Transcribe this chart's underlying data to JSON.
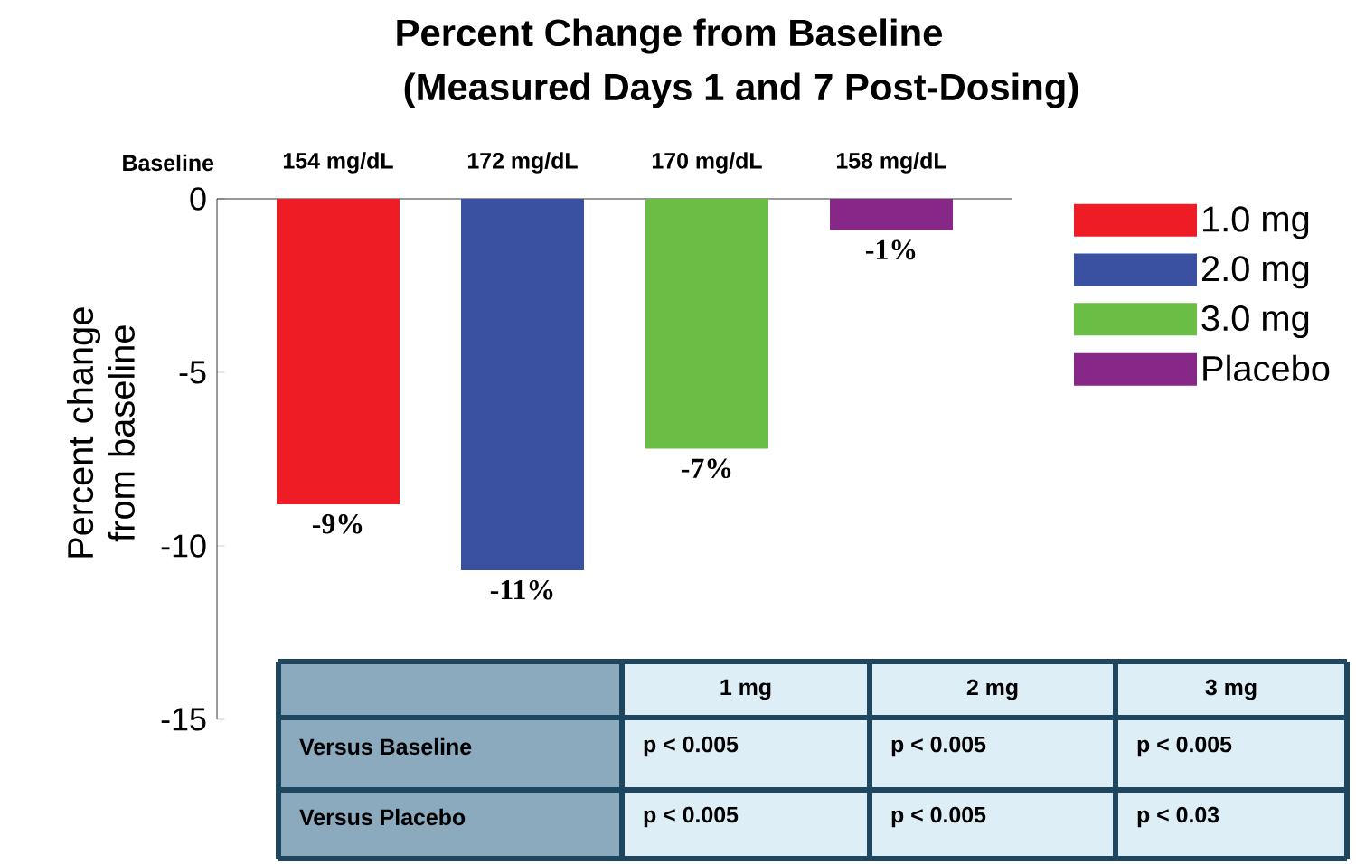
{
  "chart_data": {
    "type": "bar",
    "title": "Percent Change from Baseline",
    "subtitle": "(Measured Days 1 and 7 Post-Dosing)",
    "ylabel": "Percent change from baseline",
    "categories": [
      null
    ],
    "series": [
      {
        "name": "1.0 mg",
        "color": "#ee1c24",
        "values": [
          -8.8
        ],
        "value_labels": [
          "-9%"
        ]
      },
      {
        "name": "2.0 mg",
        "color": "#3a50a0",
        "values": [
          -10.7
        ],
        "value_labels": [
          "-11%"
        ]
      },
      {
        "name": "3.0 mg",
        "color": "#6abe45",
        "values": [
          -7.2
        ],
        "value_labels": [
          "-7%"
        ]
      },
      {
        "name": "Placebo",
        "color": "#872888",
        "values": [
          -0.9
        ],
        "value_labels": [
          "-1%"
        ]
      }
    ],
    "ylim": [
      -15,
      0
    ],
    "yticks": [
      -15,
      -10,
      -5,
      0
    ],
    "legend": "top right",
    "annotations": [
      "Baseline",
      "154 mg/dL",
      "172 mg/dL",
      "170 mg/dL",
      "158 mg/dL",
      "1 mg",
      "2 mg",
      "3 mg",
      "Versus Baseline",
      "p < 0.005",
      "p < 0.005",
      "p < 0.005",
      "Versus Placebo",
      "p < 0.005",
      "p < 0.005",
      "p < 0.03"
    ]
  }
}
